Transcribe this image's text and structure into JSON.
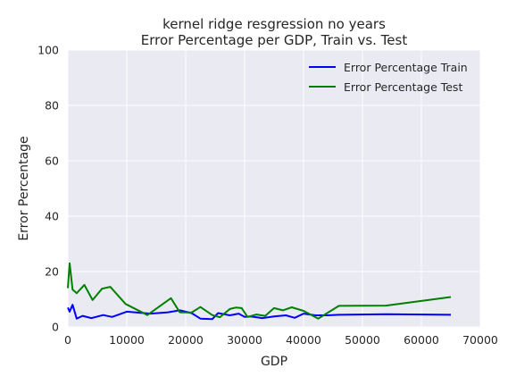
{
  "chart_data": {
    "type": "line",
    "title_line1": "kernel ridge resgression no years",
    "title_line2": "Error Percentage per GDP, Train vs. Test",
    "xlabel": "GDP",
    "ylabel": "Error Percentage",
    "xlim": [
      0,
      70000
    ],
    "ylim": [
      0,
      100
    ],
    "xticks": [
      0,
      10000,
      20000,
      30000,
      40000,
      50000,
      60000,
      70000
    ],
    "yticks": [
      0,
      20,
      40,
      60,
      80,
      100
    ],
    "grid": true,
    "legend_position": "top-right",
    "colors": {
      "background": "#eaeaf2",
      "grid": "#ffffff",
      "train": "#0000ff",
      "test": "#008000"
    },
    "series": [
      {
        "name": "Error Percentage Train",
        "color": "#0000ff",
        "x": [
          0,
          300,
          800,
          1500,
          2500,
          4000,
          6000,
          7500,
          10000,
          14000,
          17000,
          19000,
          21000,
          22500,
          24500,
          25500,
          27500,
          29000,
          30000,
          31000,
          33000,
          35000,
          37000,
          38500,
          40000,
          42000,
          44000,
          46000,
          54000,
          65000
        ],
        "y": [
          7,
          5.5,
          8,
          3,
          4,
          3.2,
          4.3,
          3.6,
          5.5,
          4.8,
          5.3,
          6,
          5,
          3,
          2.8,
          5,
          4.2,
          4.8,
          3.6,
          3.8,
          3.2,
          3.8,
          4.2,
          3.3,
          4.8,
          4.2,
          4.2,
          4.4,
          4.6,
          4.4
        ]
      },
      {
        "name": "Error Percentage Test",
        "color": "#008000",
        "x": [
          0,
          300,
          800,
          1500,
          2800,
          4200,
          5800,
          7200,
          9800,
          13500,
          17500,
          19000,
          21000,
          22500,
          24500,
          25800,
          27500,
          28500,
          29500,
          30500,
          32000,
          33500,
          35000,
          36500,
          38000,
          40000,
          42500,
          46000,
          54000,
          65000
        ],
        "y": [
          14,
          23,
          13.5,
          12.2,
          15.2,
          9.7,
          13.8,
          14.5,
          8.3,
          4.3,
          10.4,
          5.3,
          5.2,
          7.2,
          4.3,
          3.5,
          6.5,
          7,
          6.8,
          3.6,
          4.5,
          4,
          6.8,
          6,
          7.1,
          5.8,
          3,
          7.6,
          7.7,
          10.8
        ]
      }
    ]
  }
}
